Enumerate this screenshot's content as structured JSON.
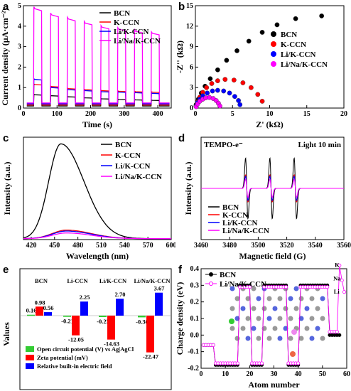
{
  "colors": {
    "BCN": "#000000",
    "K-CCN": "#ff0000",
    "Li/K-CCN": "#0000ff",
    "Li/Na/K-CCN": "#ff00ff",
    "oc": "#33cc33",
    "zeta": "#ff0000",
    "field": "#0000ff"
  },
  "panel_labels": [
    "a",
    "b",
    "c",
    "d",
    "e",
    "f"
  ],
  "chart_data": [
    {
      "type": "line",
      "panel": "a",
      "xlabel": "Time (s)",
      "ylabel": "Current density (µA·cm⁻²)",
      "xlim": [
        0,
        440
      ],
      "ylim": [
        0,
        5
      ],
      "xticks": [
        0,
        100,
        200,
        300,
        400
      ],
      "yticks": [
        0,
        1,
        2,
        3,
        4,
        5
      ],
      "series": [
        {
          "name": "BCN",
          "on": [
            0.65,
            0.6,
            0.55,
            0.5,
            0.45,
            0.42,
            0.4,
            0.38
          ],
          "off": 0.1
        },
        {
          "name": "K-CCN",
          "on": [
            1.15,
            1.05,
            0.95,
            0.9,
            0.85,
            0.82,
            0.8,
            0.78
          ],
          "off": 0.15
        },
        {
          "name": "Li/K-CCN",
          "on": [
            1.4,
            1.0,
            0.9,
            0.85,
            0.8,
            0.78,
            0.75,
            0.72
          ],
          "off": 0.2
        },
        {
          "name": "Li/Na/K-CCN",
          "on": [
            4.85,
            4.55,
            4.35,
            4.15,
            3.95,
            3.85,
            3.75,
            3.65
          ],
          "off": 0.25
        }
      ]
    },
    {
      "type": "scatter",
      "panel": "b",
      "xlabel": "Z' (kΩ)",
      "ylabel": "-Z'' (kΩ)",
      "xlim": [
        0,
        20
      ],
      "ylim": [
        0,
        15
      ],
      "xticks": [
        0,
        5,
        10,
        15,
        20
      ],
      "yticks": [
        0,
        3,
        6,
        9,
        12,
        15
      ],
      "series": [
        {
          "name": "BCN",
          "x": [
            0.1,
            0.4,
            0.8,
            1.3,
            2,
            3,
            4.2,
            5.6,
            7.2,
            9,
            11,
            13.5,
            17
          ],
          "y": [
            0.5,
            1.3,
            2.2,
            3.2,
            4.3,
            5.6,
            7,
            8.4,
            9.8,
            11.1,
            12.2,
            13.1,
            13.5
          ]
        },
        {
          "name": "K-CCN",
          "x": [
            0.1,
            0.3,
            0.6,
            1,
            1.5,
            2.2,
            3,
            4,
            5.2,
            6.4,
            7.5,
            8.4,
            9
          ],
          "y": [
            0.3,
            0.9,
            1.6,
            2.3,
            3,
            3.6,
            4,
            4.2,
            4.1,
            3.7,
            3,
            2,
            1
          ]
        },
        {
          "name": "Li/K-CCN",
          "x": [
            0.1,
            0.3,
            0.6,
            1,
            1.6,
            2.3,
            3,
            3.8,
            4.6,
            5.3,
            5.8,
            6
          ],
          "y": [
            0.3,
            0.8,
            1.3,
            1.8,
            2.2,
            2.5,
            2.6,
            2.5,
            2.2,
            1.7,
            1.1,
            0.5
          ]
        },
        {
          "name": "Li/Na/K-CCN",
          "x": [
            0.1,
            0.3,
            0.6,
            1,
            1.4,
            1.9,
            2.4,
            2.8,
            3.1,
            3.3
          ],
          "y": [
            0.2,
            0.6,
            1,
            1.3,
            1.5,
            1.55,
            1.4,
            1.1,
            0.7,
            0.3
          ]
        }
      ]
    },
    {
      "type": "line",
      "panel": "c",
      "xlabel": "Wavelength (nm)",
      "ylabel": "Intensity (a.u.)",
      "xlim": [
        410,
        600
      ],
      "xticks": [
        420,
        450,
        480,
        510,
        540,
        570,
        600
      ],
      "series": [
        {
          "name": "BCN",
          "peak": 458,
          "height": 1.0,
          "width_left": 22,
          "width_right": 42
        },
        {
          "name": "K-CCN",
          "peak": 465,
          "height": 0.09,
          "width_left": 25,
          "width_right": 45
        },
        {
          "name": "Li/K-CCN",
          "peak": 465,
          "height": 0.08,
          "width_left": 25,
          "width_right": 45
        },
        {
          "name": "Li/Na/K-CCN",
          "peak": 465,
          "height": 0.06,
          "width_left": 25,
          "width_right": 45
        }
      ]
    },
    {
      "type": "line",
      "panel": "d",
      "xlabel": "Magnetic field (G)",
      "ylabel": "Intensity (a.u.)",
      "xlim": [
        3460,
        3560
      ],
      "xticks": [
        3460,
        3480,
        3500,
        3520,
        3540,
        3560
      ],
      "annotations": [
        "TEMPO-e⁻",
        "Light 10 min"
      ],
      "line_centers": [
        3492,
        3509,
        3526
      ],
      "series": [
        {
          "name": "BCN",
          "amp": 1.0
        },
        {
          "name": "K-CCN",
          "amp": 0.45
        },
        {
          "name": "Li/K-CCN",
          "amp": 0.4
        },
        {
          "name": "Li/Na/K-CCN",
          "amp": 0.3
        }
      ]
    },
    {
      "type": "bar",
      "panel": "e",
      "ylabel": "Values",
      "categories": [
        "BCN",
        "Li-CCN",
        "Li/K-CCN",
        "Li/Na/K-CCN"
      ],
      "series": [
        {
          "name": "Open circuit potential (V) vs Ag|AgCl",
          "values": [
            0.16,
            -0.21,
            -0.25,
            -0.3
          ]
        },
        {
          "name": "Zeta potential (mV)",
          "values": [
            0.98,
            -12.05,
            -14.63,
            -22.47
          ]
        },
        {
          "name": "Relative built-in electric field",
          "values": [
            0.56,
            2.25,
            2.7,
            3.67
          ]
        }
      ]
    },
    {
      "type": "line",
      "panel": "f",
      "xlabel": "Atom number",
      "ylabel": "Charge density (eV)",
      "xlim": [
        0,
        60
      ],
      "ylim": [
        -0.2,
        0.4
      ],
      "xticks": [
        0,
        10,
        20,
        30,
        40,
        50,
        60
      ],
      "yticks": [
        -0.2,
        -0.1,
        0.0,
        0.1,
        0.2,
        0.3,
        0.4
      ],
      "annotations": [
        "K",
        "Na",
        "Li"
      ],
      "series": [
        {
          "name": "BCN",
          "x": [
            1,
            2,
            3,
            4,
            5,
            6,
            7,
            8,
            9,
            10,
            11,
            12,
            13,
            14,
            15,
            16,
            17,
            18,
            19,
            20,
            21,
            22,
            23,
            24,
            25,
            26,
            27,
            28,
            29,
            30,
            31,
            32,
            33,
            34,
            35,
            36,
            37,
            38,
            39,
            40,
            41,
            42,
            43,
            44,
            45,
            46,
            47,
            48,
            49,
            50,
            51,
            52,
            53,
            54,
            55,
            56,
            57
          ],
          "y": [
            -0.06,
            -0.06,
            -0.06,
            -0.06,
            -0.06,
            -0.18,
            -0.18,
            -0.18,
            -0.18,
            -0.18,
            -0.18,
            -0.18,
            -0.18,
            -0.18,
            -0.18,
            0.3,
            0.3,
            0.3,
            0.3,
            0.3,
            -0.18,
            -0.18,
            -0.18,
            -0.18,
            -0.18,
            0.3,
            0.3,
            0.3,
            0.3,
            0.3,
            0.3,
            0.3,
            0.3,
            0.3,
            0.3,
            -0.18,
            -0.18,
            -0.18,
            -0.18,
            -0.18,
            0.3,
            0.3,
            0.3,
            0.3,
            0.3,
            0.3,
            0.3,
            0.3,
            0.3,
            0.3,
            0.3,
            0.3,
            0.0,
            0.0,
            0.0,
            0.0,
            0.0
          ]
        },
        {
          "name": "Li/Na/K-CCN",
          "x": [
            1,
            2,
            3,
            4,
            5,
            6,
            7,
            8,
            9,
            10,
            11,
            12,
            13,
            14,
            15,
            16,
            17,
            18,
            19,
            20,
            21,
            22,
            23,
            24,
            25,
            26,
            27,
            28,
            29,
            30,
            31,
            32,
            33,
            34,
            35,
            36,
            37,
            38,
            39,
            40,
            41,
            42,
            43,
            44,
            45,
            46,
            47,
            48,
            49,
            50,
            51,
            52,
            53,
            54,
            55,
            56,
            57,
            58,
            59
          ],
          "y": [
            -0.06,
            -0.06,
            -0.06,
            -0.06,
            -0.06,
            -0.17,
            -0.17,
            -0.17,
            -0.17,
            -0.17,
            -0.17,
            -0.17,
            -0.17,
            -0.17,
            -0.17,
            0.29,
            0.29,
            0.29,
            0.29,
            0.29,
            -0.17,
            -0.17,
            -0.17,
            -0.17,
            -0.17,
            0.29,
            0.29,
            0.29,
            0.29,
            0.29,
            0.29,
            0.29,
            0.29,
            0.29,
            0.29,
            -0.17,
            -0.17,
            -0.17,
            -0.17,
            -0.17,
            0.29,
            0.29,
            0.29,
            0.29,
            0.29,
            0.29,
            0.29,
            0.29,
            0.29,
            0.29,
            0.29,
            0.29,
            0.02,
            0.02,
            0.02,
            0.02,
            0.42,
            0.33,
            0.26
          ]
        }
      ]
    }
  ]
}
